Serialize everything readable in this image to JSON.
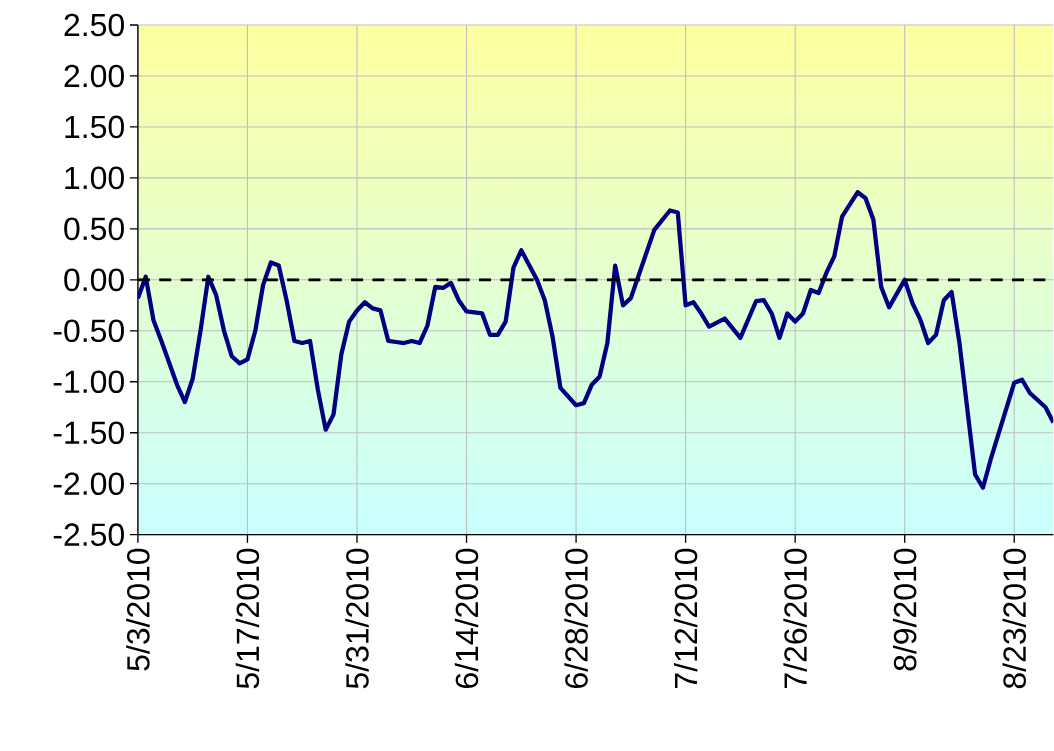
{
  "chart_data": {
    "type": "line",
    "x": [
      "2010-05-03",
      "2010-05-04",
      "2010-05-05",
      "2010-05-06",
      "2010-05-08",
      "2010-05-09",
      "2010-05-10",
      "2010-05-11",
      "2010-05-12",
      "2010-05-13",
      "2010-05-14",
      "2010-05-15",
      "2010-05-16",
      "2010-05-17",
      "2010-05-18",
      "2010-05-19",
      "2010-05-20",
      "2010-05-21",
      "2010-05-22",
      "2010-05-23",
      "2010-05-24",
      "2010-05-25",
      "2010-05-26",
      "2010-05-27",
      "2010-05-28",
      "2010-05-29",
      "2010-05-30",
      "2010-05-31",
      "2010-06-01",
      "2010-06-02",
      "2010-06-03",
      "2010-06-04",
      "2010-06-05",
      "2010-06-06",
      "2010-06-07",
      "2010-06-08",
      "2010-06-09",
      "2010-06-10",
      "2010-06-11",
      "2010-06-12",
      "2010-06-13",
      "2010-06-14",
      "2010-06-16",
      "2010-06-17",
      "2010-06-18",
      "2010-06-19",
      "2010-06-20",
      "2010-06-21",
      "2010-06-23",
      "2010-06-24",
      "2010-06-25",
      "2010-06-26",
      "2010-06-28",
      "2010-06-29",
      "2010-06-30",
      "2010-07-01",
      "2010-07-02",
      "2010-07-03",
      "2010-07-04",
      "2010-07-05",
      "2010-07-08",
      "2010-07-10",
      "2010-07-11",
      "2010-07-12",
      "2010-07-13",
      "2010-07-14",
      "2010-07-15",
      "2010-07-17",
      "2010-07-19",
      "2010-07-21",
      "2010-07-22",
      "2010-07-23",
      "2010-07-24",
      "2010-07-25",
      "2010-07-26",
      "2010-07-27",
      "2010-07-28",
      "2010-07-29",
      "2010-07-30",
      "2010-07-31",
      "2010-08-01",
      "2010-08-03",
      "2010-08-04",
      "2010-08-05",
      "2010-08-06",
      "2010-08-07",
      "2010-08-09",
      "2010-08-10",
      "2010-08-11",
      "2010-08-12",
      "2010-08-13",
      "2010-08-14",
      "2010-08-15",
      "2010-08-16",
      "2010-08-18",
      "2010-08-19",
      "2010-08-20",
      "2010-08-23",
      "2010-08-24",
      "2010-08-25",
      "2010-08-27",
      "2010-08-28"
    ],
    "values": [
      -0.18,
      0.03,
      -0.4,
      -0.6,
      -1.03,
      -1.2,
      -0.97,
      -0.5,
      0.03,
      -0.15,
      -0.5,
      -0.75,
      -0.82,
      -0.78,
      -0.5,
      -0.05,
      0.17,
      0.14,
      -0.2,
      -0.6,
      -0.62,
      -0.6,
      -1.08,
      -1.47,
      -1.32,
      -0.73,
      -0.41,
      -0.3,
      -0.22,
      -0.28,
      -0.3,
      -0.6,
      -0.61,
      -0.62,
      -0.6,
      -0.62,
      -0.45,
      -0.07,
      -0.08,
      -0.03,
      -0.2,
      -0.31,
      -0.33,
      -0.54,
      -0.54,
      -0.41,
      0.12,
      0.29,
      0.0,
      -0.2,
      -0.56,
      -1.06,
      -1.23,
      -1.21,
      -1.03,
      -0.95,
      -0.62,
      0.14,
      -0.25,
      -0.18,
      0.49,
      0.68,
      0.66,
      -0.25,
      -0.22,
      -0.33,
      -0.46,
      -0.38,
      -0.57,
      -0.21,
      -0.2,
      -0.33,
      -0.57,
      -0.33,
      -0.41,
      -0.33,
      -0.1,
      -0.13,
      0.07,
      0.23,
      0.62,
      0.86,
      0.8,
      0.59,
      -0.07,
      -0.27,
      0.0,
      -0.23,
      -0.39,
      -0.62,
      -0.54,
      -0.2,
      -0.12,
      -0.62,
      -1.91,
      -2.04,
      -1.76,
      -1.01,
      -0.98,
      -1.11,
      -1.25,
      -1.4
    ],
    "color": "#000080",
    "xlim": [
      "2010-05-03",
      "2010-08-28"
    ],
    "xticks": [
      {
        "value": "2010-05-03",
        "label": "5/3/2010"
      },
      {
        "value": "2010-05-17",
        "label": "5/17/2010"
      },
      {
        "value": "2010-05-31",
        "label": "5/31/2010"
      },
      {
        "value": "2010-06-14",
        "label": "6/14/2010"
      },
      {
        "value": "2010-06-28",
        "label": "6/28/2010"
      },
      {
        "value": "2010-07-12",
        "label": "7/12/2010"
      },
      {
        "value": "2010-07-26",
        "label": "7/26/2010"
      },
      {
        "value": "2010-08-09",
        "label": "8/9/2010"
      },
      {
        "value": "2010-08-23",
        "label": "8/23/2010"
      }
    ],
    "ylim": [
      -2.5,
      2.5
    ],
    "yticks": [
      {
        "value": -2.5,
        "label": "-2.50"
      },
      {
        "value": -2.0,
        "label": "-2.00"
      },
      {
        "value": -1.5,
        "label": "-1.50"
      },
      {
        "value": -1.0,
        "label": "-1.00"
      },
      {
        "value": -0.5,
        "label": "-0.50"
      },
      {
        "value": 0,
        "label": "0.00"
      },
      {
        "value": 0.5,
        "label": "0.50"
      },
      {
        "value": 1.0,
        "label": "1.00"
      },
      {
        "value": 1.5,
        "label": "1.50"
      },
      {
        "value": 2.0,
        "label": "2.00"
      },
      {
        "value": 2.5,
        "label": "2.50"
      }
    ],
    "ref_lines": [
      {
        "axis": "y",
        "value": 0,
        "color": "#000000",
        "line_style": "dashed"
      }
    ],
    "grid": true,
    "marker": "none",
    "line_style": "solid"
  }
}
